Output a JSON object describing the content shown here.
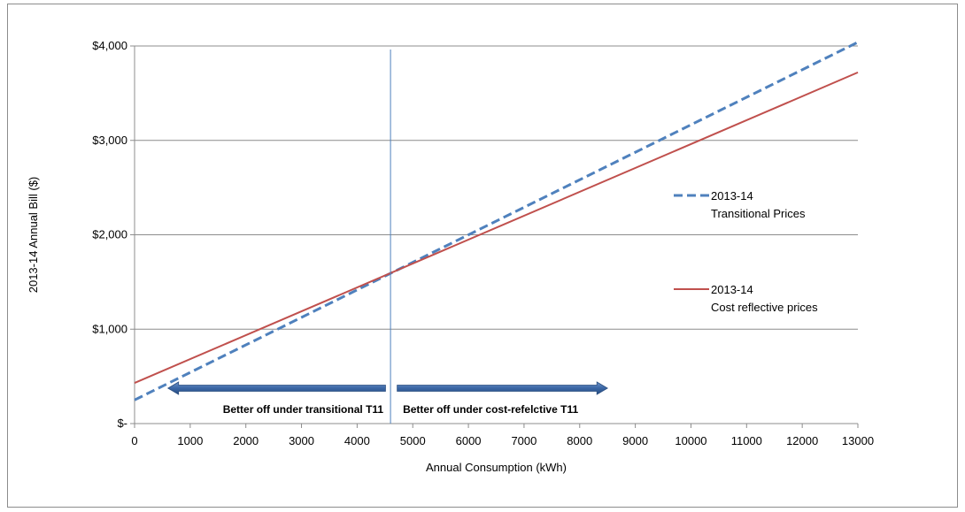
{
  "chart_data": {
    "type": "line",
    "title": "",
    "xlabel": "Annual Consumption (kWh)",
    "ylabel": "2013-14 Annual Bill ($)",
    "xlim": [
      0,
      13000
    ],
    "ylim": [
      0,
      4000
    ],
    "x_ticks": [
      0,
      1000,
      2000,
      3000,
      4000,
      5000,
      6000,
      7000,
      8000,
      9000,
      10000,
      11000,
      12000,
      13000
    ],
    "x_tick_labels": [
      "0",
      "1000",
      "2000",
      "3000",
      "4000",
      "5000",
      "6000",
      "7000",
      "8000",
      "9000",
      "10000",
      "11000",
      "12000",
      "13000"
    ],
    "y_ticks": [
      0,
      1000,
      2000,
      3000,
      4000
    ],
    "y_tick_labels": [
      "$-",
      "$1,000",
      "$2,000",
      "$3,000",
      "$4,000"
    ],
    "grid": "horizontal",
    "legend_position": "right",
    "series": [
      {
        "name": "2013-14 Transitional Prices",
        "legend_lines": [
          "2013-14",
          "Transitional Prices"
        ],
        "color": "#4f81bd",
        "style": "dashed",
        "x": [
          0,
          13000
        ],
        "y": [
          250,
          4040
        ]
      },
      {
        "name": "2013-14 Cost reflective prices",
        "legend_lines": [
          "2013-14",
          "Cost reflective prices"
        ],
        "color": "#c0504d",
        "style": "solid",
        "x": [
          0,
          13000
        ],
        "y": [
          430,
          3720
        ]
      }
    ],
    "annotations": {
      "crossover_x": 4600,
      "crossover_color": "#4f81bd",
      "left_label": "Better off under transitional  T11",
      "right_label": "Better off under cost-refelctive T11",
      "left_arrow": {
        "from": 4600,
        "to": 600
      },
      "right_arrow": {
        "from": 4700,
        "to": 8500
      },
      "arrow_color": "#4f81bd"
    }
  }
}
